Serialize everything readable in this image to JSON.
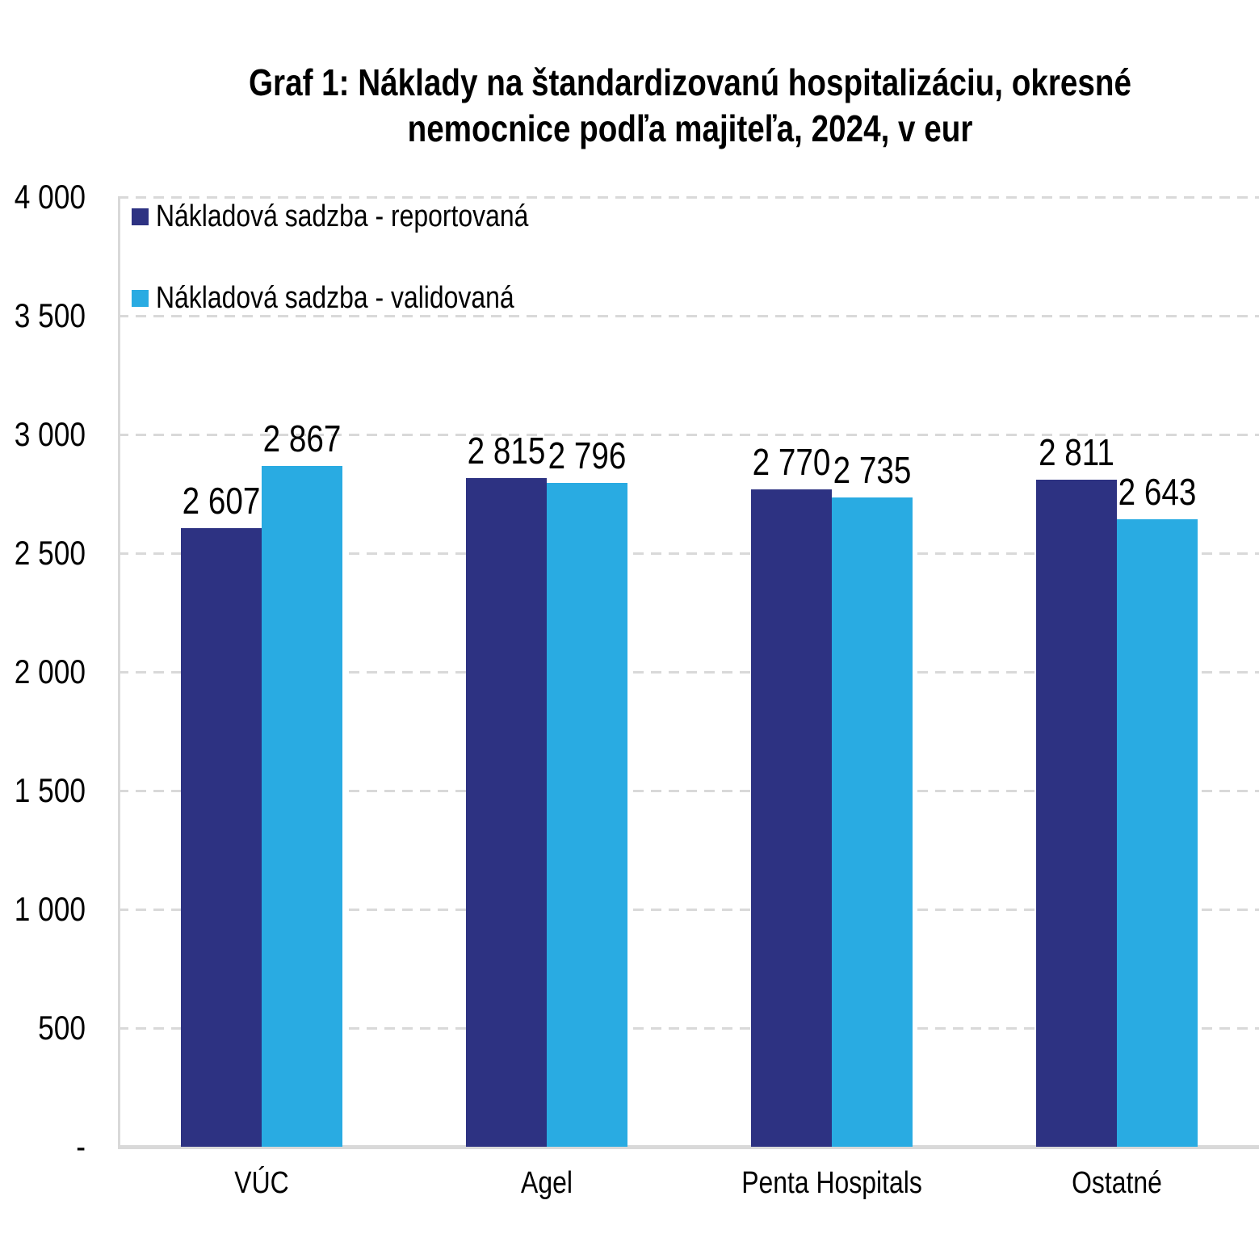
{
  "chart_data": {
    "type": "bar",
    "title": "Graf 1: Náklady na štandardizovanú hospitalizáciu, okresné nemocnice podľa majiteľa, 2024, v eur",
    "title_lines": [
      "Graf 1: Náklady na štandardizovanú hospitalizáciu, okresné",
      "nemocnice podľa majiteľa, 2024, v eur"
    ],
    "categories": [
      "VÚC",
      "Agel",
      "Penta Hospitals",
      "Ostatné"
    ],
    "series": [
      {
        "name": "Nákladová sadzba - reportovaná",
        "color": "#2D3282",
        "values": [
          2607,
          2815,
          2770,
          2811
        ],
        "labels": [
          "2 607",
          "2 815",
          "2 770",
          "2 811"
        ]
      },
      {
        "name": "Nákladová sadzba - validovaná",
        "color": "#29ABE2",
        "values": [
          2867,
          2796,
          2735,
          2643
        ],
        "labels": [
          "2 867",
          "2 796",
          "2 735",
          "2 643"
        ]
      }
    ],
    "y_axis": {
      "min": 0,
      "max": 4000,
      "step": 500,
      "tick_labels": [
        "-",
        "500",
        "1 000",
        "1 500",
        "2 000",
        "2 500",
        "3 000",
        "3 500",
        "4 000"
      ]
    },
    "unit": "eur",
    "legend_position": "top-left",
    "grid": "dashed-horizontal",
    "grid_color": "#D9D9D9",
    "axis_color": "#D9D9D9",
    "text_color": "#000000"
  }
}
